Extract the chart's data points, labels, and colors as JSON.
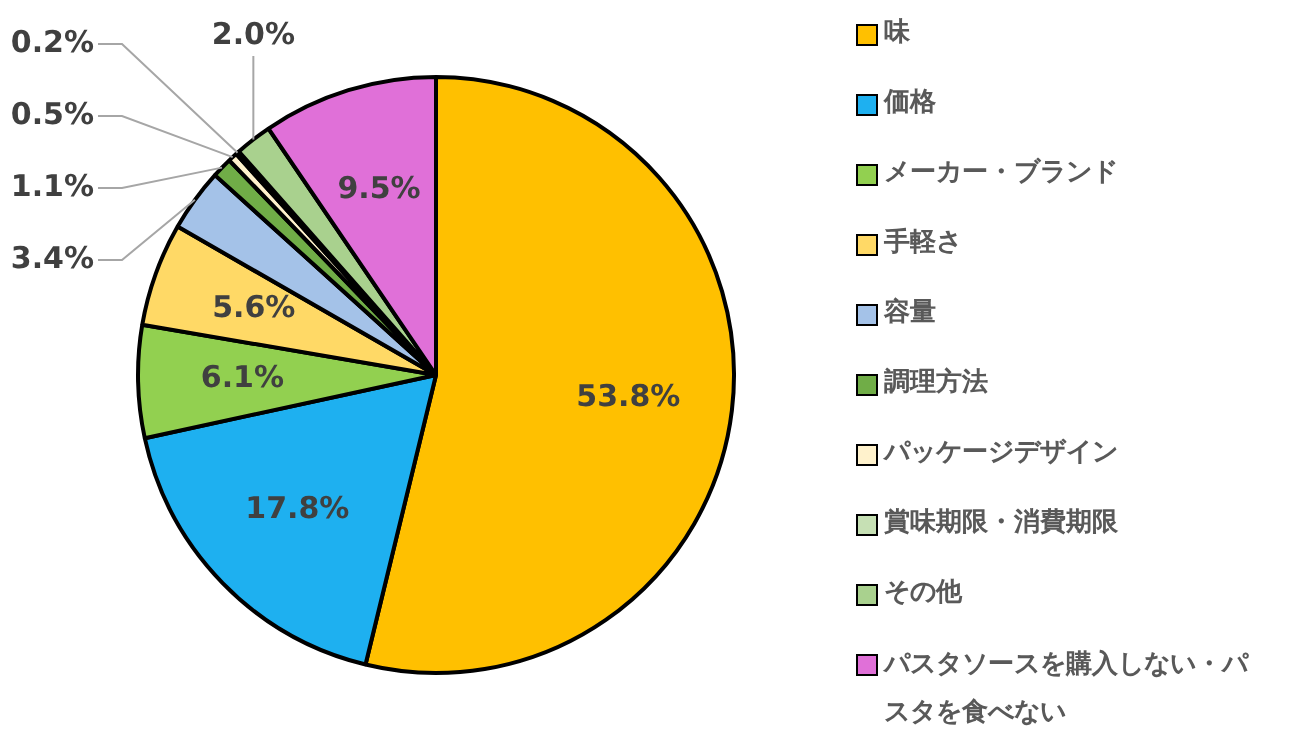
{
  "chart_data": {
    "type": "pie",
    "categories": [
      "味",
      "価格",
      "メーカー・ブランド",
      "手軽さ",
      "容量",
      "調理方法",
      "パッケージデザイン",
      "賞味期限・消費期限",
      "その他",
      "パスタソースを購入しない・パスタを食べない"
    ],
    "values": [
      53.8,
      17.8,
      6.1,
      5.6,
      3.4,
      1.1,
      0.5,
      0.2,
      2.0,
      9.5
    ],
    "colors": [
      "#ffc000",
      "#1eb0f0",
      "#92d050",
      "#ffd966",
      "#a4c2e8",
      "#70ad47",
      "#fff2cc",
      "#c6e0b4",
      "#a9d18e",
      "#e070d8"
    ],
    "value_labels": [
      "53.8%",
      "17.8%",
      "6.1%",
      "5.6%",
      "3.4%",
      "1.1%",
      "0.5%",
      "0.2%",
      "2.0%",
      "9.5%"
    ],
    "legend": "right"
  }
}
